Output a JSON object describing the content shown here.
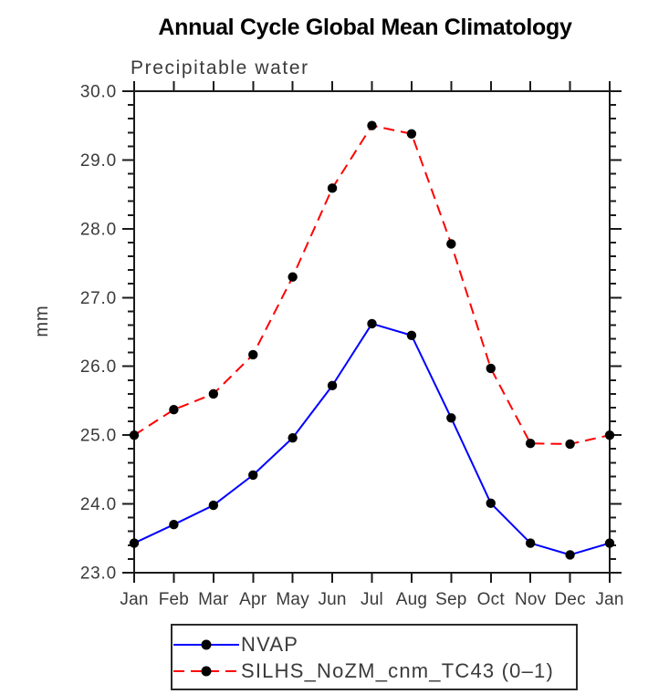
{
  "title": "Annual Cycle Global Mean Climatology",
  "chart_data": {
    "type": "line",
    "title": "Annual Cycle Global Mean Climatology",
    "subtitle": "Precipitable water",
    "ylabel": "mm",
    "xlabel": "",
    "categories": [
      "Jan",
      "Feb",
      "Mar",
      "Apr",
      "May",
      "Jun",
      "Jul",
      "Aug",
      "Sep",
      "Oct",
      "Nov",
      "Dec",
      "Jan"
    ],
    "series": [
      {
        "name": "NVAP",
        "color": "#0000ff",
        "line_style": "solid",
        "marker": "filled-circle",
        "marker_color": "#000000",
        "values": [
          23.43,
          23.7,
          23.98,
          24.42,
          24.96,
          25.72,
          26.62,
          26.45,
          25.25,
          24.01,
          23.43,
          23.26,
          23.43
        ]
      },
      {
        "name": "SILHS_NoZM_cnm_TC43 (0–1)",
        "color": "#ff0000",
        "line_style": "dashed",
        "marker": "filled-circle",
        "marker_color": "#000000",
        "values": [
          25.0,
          25.37,
          25.6,
          26.17,
          27.3,
          28.59,
          29.5,
          29.38,
          27.78,
          25.97,
          24.88,
          24.87,
          25.0
        ]
      }
    ],
    "ylim": [
      23.0,
      30.0
    ],
    "ytick_step": 1.0,
    "ytick_minor_step": 0.2,
    "ytick_labels": [
      "23.0",
      "24.0",
      "25.0",
      "26.0",
      "27.0",
      "28.0",
      "29.0",
      "30.0"
    ],
    "grid": false,
    "legend_position": "bottom",
    "ticks_direction": "outward"
  }
}
